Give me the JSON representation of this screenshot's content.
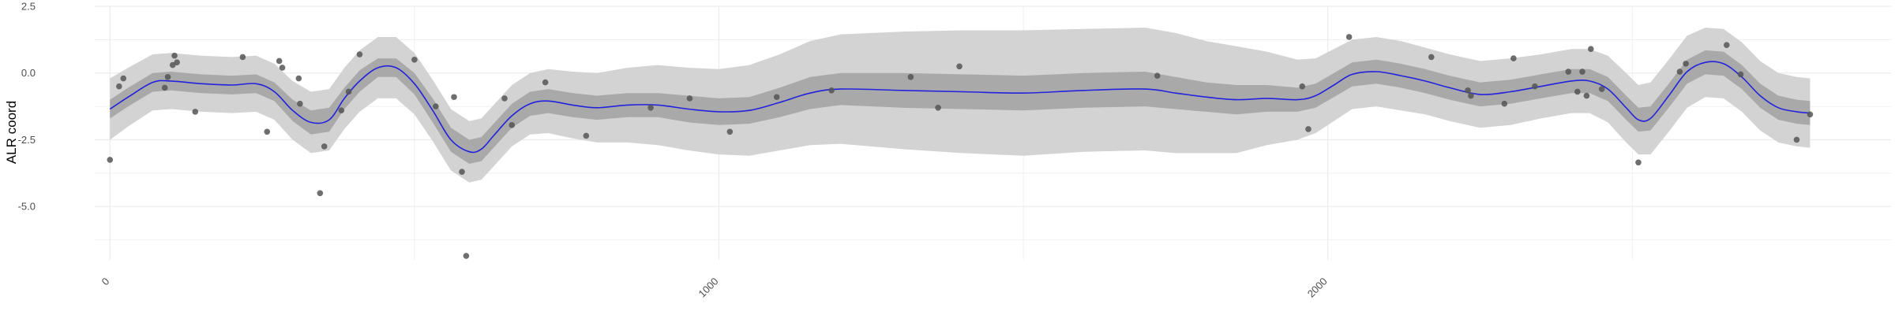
{
  "chart_data": {
    "type": "scatter",
    "title": "",
    "xlabel": "",
    "ylabel": "ALR coord",
    "xlim": [
      -25,
      2925
    ],
    "ylim": [
      -7.0,
      2.5
    ],
    "x_ticks": [
      0,
      1000,
      2000
    ],
    "y_ticks": [
      2.5,
      0.0,
      -2.5,
      -5.0
    ],
    "x_tick_labels": [
      "0",
      "1000",
      "2000"
    ],
    "y_tick_labels": [
      "2.5",
      "0.0",
      "-2.5",
      "-5.0"
    ],
    "grid": true,
    "legend": "none",
    "colors": {
      "trend": "#2222dd",
      "inner_band": "#a9a9a9",
      "outer_band": "#d3d3d3",
      "points": "#555555",
      "grid": "#ebebeb"
    },
    "points": [
      {
        "x": 0,
        "y": -3.25
      },
      {
        "x": 15,
        "y": -0.5
      },
      {
        "x": 22,
        "y": -0.2
      },
      {
        "x": 90,
        "y": -0.55
      },
      {
        "x": 95,
        "y": -0.15
      },
      {
        "x": 103,
        "y": 0.3
      },
      {
        "x": 106,
        "y": 0.65
      },
      {
        "x": 110,
        "y": 0.4
      },
      {
        "x": 140,
        "y": -1.45
      },
      {
        "x": 218,
        "y": 0.6
      },
      {
        "x": 258,
        "y": -2.2
      },
      {
        "x": 278,
        "y": 0.45
      },
      {
        "x": 283,
        "y": 0.2
      },
      {
        "x": 310,
        "y": -0.2
      },
      {
        "x": 312,
        "y": -1.15
      },
      {
        "x": 345,
        "y": -4.5
      },
      {
        "x": 352,
        "y": -2.75
      },
      {
        "x": 380,
        "y": -1.4
      },
      {
        "x": 392,
        "y": -0.7
      },
      {
        "x": 410,
        "y": 0.7
      },
      {
        "x": 500,
        "y": 0.5
      },
      {
        "x": 535,
        "y": -1.25
      },
      {
        "x": 565,
        "y": -0.9
      },
      {
        "x": 578,
        "y": -3.7
      },
      {
        "x": 585,
        "y": -6.85
      },
      {
        "x": 648,
        "y": -0.95
      },
      {
        "x": 660,
        "y": -1.95
      },
      {
        "x": 715,
        "y": -0.35
      },
      {
        "x": 782,
        "y": -2.35
      },
      {
        "x": 888,
        "y": -1.3
      },
      {
        "x": 952,
        "y": -0.95
      },
      {
        "x": 1018,
        "y": -2.2
      },
      {
        "x": 1095,
        "y": -0.9
      },
      {
        "x": 1185,
        "y": -0.65
      },
      {
        "x": 1315,
        "y": -0.15
      },
      {
        "x": 1360,
        "y": -1.3
      },
      {
        "x": 1395,
        "y": 0.25
      },
      {
        "x": 1720,
        "y": -0.1
      },
      {
        "x": 1958,
        "y": -0.5
      },
      {
        "x": 1968,
        "y": -2.1
      },
      {
        "x": 2035,
        "y": 1.35
      },
      {
        "x": 2170,
        "y": 0.6
      },
      {
        "x": 2230,
        "y": -0.65
      },
      {
        "x": 2235,
        "y": -0.85
      },
      {
        "x": 2290,
        "y": -1.15
      },
      {
        "x": 2305,
        "y": 0.55
      },
      {
        "x": 2340,
        "y": -0.5
      },
      {
        "x": 2395,
        "y": 0.05
      },
      {
        "x": 2410,
        "y": -0.7
      },
      {
        "x": 2418,
        "y": 0.05
      },
      {
        "x": 2425,
        "y": -0.85
      },
      {
        "x": 2432,
        "y": 0.9
      },
      {
        "x": 2450,
        "y": -0.6
      },
      {
        "x": 2510,
        "y": -3.35
      },
      {
        "x": 2578,
        "y": 0.05
      },
      {
        "x": 2588,
        "y": 0.35
      },
      {
        "x": 2655,
        "y": 1.05
      },
      {
        "x": 2678,
        "y": -0.05
      },
      {
        "x": 2770,
        "y": -2.5
      },
      {
        "x": 2792,
        "y": -1.55
      }
    ],
    "trend": {
      "x": [
        0,
        30,
        70,
        100,
        150,
        200,
        240,
        270,
        300,
        330,
        360,
        385,
        410,
        440,
        470,
        500,
        530,
        560,
        590,
        610,
        630,
        660,
        690,
        720,
        760,
        800,
        850,
        900,
        950,
        1000,
        1050,
        1100,
        1150,
        1200,
        1300,
        1400,
        1500,
        1600,
        1700,
        1750,
        1800,
        1850,
        1900,
        1950,
        1980,
        2010,
        2040,
        2080,
        2120,
        2160,
        2200,
        2250,
        2300,
        2350,
        2400,
        2430,
        2460,
        2490,
        2510,
        2530,
        2560,
        2590,
        2620,
        2650,
        2680,
        2710,
        2740,
        2770,
        2792
      ],
      "y": [
        -1.35,
        -0.9,
        -0.35,
        -0.3,
        -0.4,
        -0.45,
        -0.4,
        -0.7,
        -1.4,
        -1.85,
        -1.75,
        -0.95,
        -0.3,
        0.2,
        0.2,
        -0.4,
        -1.4,
        -2.5,
        -2.95,
        -2.85,
        -2.35,
        -1.6,
        -1.15,
        -1.05,
        -1.2,
        -1.3,
        -1.2,
        -1.2,
        -1.35,
        -1.45,
        -1.4,
        -1.1,
        -0.75,
        -0.6,
        -0.65,
        -0.7,
        -0.75,
        -0.65,
        -0.6,
        -0.75,
        -0.9,
        -1.0,
        -0.95,
        -1.0,
        -0.85,
        -0.45,
        -0.05,
        0.05,
        -0.1,
        -0.3,
        -0.55,
        -0.8,
        -0.7,
        -0.5,
        -0.3,
        -0.3,
        -0.6,
        -1.3,
        -1.75,
        -1.7,
        -0.85,
        0.05,
        0.4,
        0.35,
        -0.15,
        -0.85,
        -1.3,
        -1.45,
        -1.5
      ]
    },
    "band_inner_halfwidth": [
      0.35,
      0.35,
      0.35,
      0.35,
      0.35,
      0.35,
      0.35,
      0.35,
      0.4,
      0.45,
      0.45,
      0.4,
      0.4,
      0.35,
      0.35,
      0.4,
      0.45,
      0.45,
      0.45,
      0.45,
      0.45,
      0.45,
      0.45,
      0.45,
      0.45,
      0.45,
      0.45,
      0.45,
      0.5,
      0.5,
      0.5,
      0.55,
      0.6,
      0.6,
      0.65,
      0.65,
      0.65,
      0.65,
      0.65,
      0.6,
      0.55,
      0.55,
      0.5,
      0.45,
      0.45,
      0.45,
      0.45,
      0.45,
      0.45,
      0.45,
      0.45,
      0.45,
      0.45,
      0.45,
      0.45,
      0.45,
      0.45,
      0.45,
      0.45,
      0.45,
      0.45,
      0.45,
      0.45,
      0.45,
      0.45,
      0.45,
      0.45,
      0.45,
      0.45
    ],
    "band_outer_halfwidth": [
      1.15,
      1.1,
      1.05,
      1.05,
      1.05,
      1.05,
      1.05,
      1.05,
      1.1,
      1.15,
      1.15,
      1.15,
      1.15,
      1.15,
      1.15,
      1.15,
      1.15,
      1.15,
      1.15,
      1.15,
      1.15,
      1.15,
      1.15,
      1.2,
      1.25,
      1.3,
      1.4,
      1.5,
      1.55,
      1.6,
      1.7,
      1.8,
      1.95,
      2.05,
      2.2,
      2.3,
      2.35,
      2.3,
      2.3,
      2.25,
      2.1,
      2.0,
      1.75,
      1.5,
      1.4,
      1.35,
      1.3,
      1.3,
      1.3,
      1.25,
      1.25,
      1.25,
      1.25,
      1.2,
      1.2,
      1.2,
      1.25,
      1.3,
      1.3,
      1.35,
      1.35,
      1.35,
      1.3,
      1.3,
      1.3,
      1.3,
      1.3,
      1.3,
      1.3
    ]
  }
}
